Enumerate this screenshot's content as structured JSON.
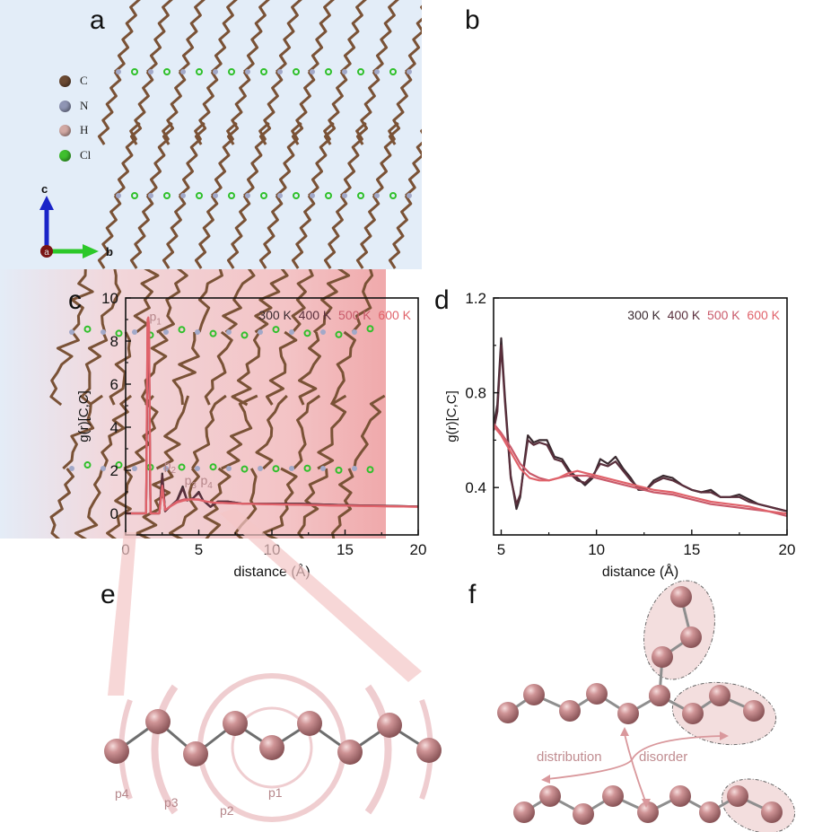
{
  "panels": {
    "a": {
      "letter": "a",
      "legend": [
        {
          "symbol": "C",
          "color": "#6b4a33"
        },
        {
          "symbol": "N",
          "color": "#8f95b4"
        },
        {
          "symbol": "H",
          "color": "#d2a9a4"
        },
        {
          "symbol": "Cl",
          "color": "#3fbf2e"
        }
      ],
      "axes": {
        "c": "c",
        "b": "b",
        "a": "a"
      }
    },
    "b": {
      "letter": "b"
    },
    "c": {
      "letter": "c"
    },
    "d": {
      "letter": "d"
    },
    "e": {
      "letter": "e",
      "shell_labels": [
        "p4",
        "p3",
        "p2",
        "p1"
      ]
    },
    "f": {
      "letter": "f",
      "arrow_labels": [
        "distribution",
        "disorder"
      ]
    }
  },
  "colors": {
    "300K": "#3a2a30",
    "400K": "#5a2f3c",
    "500K": "#c95a6a",
    "600K": "#e0626a",
    "peak_label": "#b5868a",
    "atom": "#c48a8c"
  },
  "chart_data": [
    {
      "id": "c",
      "type": "line",
      "title": "",
      "xlabel": "distance (Å)",
      "ylabel": "g(r)[C,C]",
      "xlim": [
        0,
        20
      ],
      "ylim": [
        -1,
        10
      ],
      "xticks": [
        "0",
        "5",
        "10",
        "15",
        "20"
      ],
      "yticks": [
        "0",
        "2",
        "4",
        "6",
        "8",
        "10"
      ],
      "grid": false,
      "legend": {
        "placement": "top-right",
        "entries": [
          "300 K",
          "400 K",
          "500 K",
          "600 K"
        ]
      },
      "annotations": [
        {
          "text": "p",
          "sub": "1",
          "x": 1.5,
          "y": 9.1
        },
        {
          "text": "p",
          "sub": "2",
          "x": 2.5,
          "y": 2.2
        },
        {
          "text": "p",
          "sub": "3",
          "x": 3.9,
          "y": 1.5
        },
        {
          "text": "p",
          "sub": "4",
          "x": 5.0,
          "y": 1.5
        }
      ],
      "series": [
        {
          "name": "300 K",
          "x": [
            0,
            1.4,
            1.5,
            1.55,
            1.6,
            1.7,
            2.3,
            2.5,
            2.7,
            3.0,
            3.5,
            3.9,
            4.2,
            4.6,
            5.0,
            5.3,
            5.8,
            6.3,
            7,
            8,
            10,
            12,
            14,
            16,
            18,
            20
          ],
          "y": [
            0,
            0,
            7.5,
            8.1,
            7.5,
            0,
            0,
            1.85,
            0.1,
            0.3,
            0.6,
            1.25,
            0.6,
            0.7,
            1.0,
            0.6,
            0.3,
            0.55,
            0.55,
            0.45,
            0.45,
            0.45,
            0.4,
            0.37,
            0.35,
            0.32
          ]
        },
        {
          "name": "400 K",
          "x": [
            0,
            1.4,
            1.5,
            1.55,
            1.6,
            1.7,
            2.3,
            2.5,
            2.7,
            3.0,
            3.5,
            3.9,
            4.2,
            4.6,
            5.0,
            5.3,
            5.8,
            6.3,
            7,
            8,
            10,
            12,
            14,
            16,
            18,
            20
          ],
          "y": [
            0,
            0,
            7.9,
            8.3,
            7.8,
            0,
            0,
            1.75,
            0.1,
            0.3,
            0.55,
            1.15,
            0.6,
            0.7,
            0.95,
            0.6,
            0.32,
            0.55,
            0.55,
            0.45,
            0.45,
            0.44,
            0.4,
            0.37,
            0.35,
            0.32
          ]
        },
        {
          "name": "500 K",
          "x": [
            0,
            1.4,
            1.5,
            1.55,
            1.6,
            1.7,
            2.3,
            2.5,
            2.7,
            3.0,
            3.5,
            4.0,
            4.5,
            5.0,
            5.5,
            6,
            8,
            10,
            12,
            14,
            16,
            18,
            20
          ],
          "y": [
            0,
            0,
            8.8,
            9.0,
            8.6,
            0,
            0,
            1.3,
            0.15,
            0.3,
            0.55,
            0.65,
            0.65,
            0.65,
            0.55,
            0.5,
            0.45,
            0.42,
            0.4,
            0.37,
            0.35,
            0.33,
            0.31
          ]
        },
        {
          "name": "600 K",
          "x": [
            0,
            1.4,
            1.5,
            1.55,
            1.6,
            1.7,
            2.3,
            2.5,
            2.7,
            3.0,
            3.5,
            4.0,
            4.5,
            5.0,
            5.5,
            6,
            8,
            10,
            12,
            14,
            16,
            18,
            20
          ],
          "y": [
            0,
            0,
            9.0,
            9.1,
            8.7,
            0,
            0,
            1.25,
            0.15,
            0.3,
            0.5,
            0.6,
            0.65,
            0.63,
            0.55,
            0.5,
            0.45,
            0.42,
            0.4,
            0.37,
            0.35,
            0.33,
            0.31
          ]
        }
      ]
    },
    {
      "id": "d",
      "type": "line",
      "title": "",
      "xlabel": "distance (Å)",
      "ylabel": "g(r)[C,C]",
      "xlim": [
        4.6,
        20
      ],
      "ylim": [
        0.2,
        1.2
      ],
      "xticks": [
        "5",
        "10",
        "15",
        "20"
      ],
      "yticks": [
        "0.4",
        "0.8",
        "1.2"
      ],
      "grid": false,
      "legend": {
        "placement": "top-right",
        "entries": [
          "300 K",
          "400 K",
          "500 K",
          "600 K"
        ]
      },
      "series": [
        {
          "name": "300 K",
          "x": [
            4.6,
            4.8,
            5.0,
            5.2,
            5.5,
            5.8,
            6.0,
            6.2,
            6.4,
            6.7,
            7.0,
            7.4,
            7.8,
            8.2,
            8.6,
            9.0,
            9.4,
            9.8,
            10.2,
            10.6,
            11.0,
            11.4,
            11.8,
            12.2,
            12.6,
            13.0,
            13.5,
            14.0,
            14.5,
            15.0,
            15.5,
            16.0,
            16.5,
            17.0,
            17.5,
            18.0,
            18.5,
            19.0,
            19.5,
            20.0
          ],
          "y": [
            0.66,
            0.75,
            1.03,
            0.78,
            0.45,
            0.31,
            0.36,
            0.5,
            0.62,
            0.59,
            0.6,
            0.6,
            0.53,
            0.52,
            0.47,
            0.44,
            0.41,
            0.44,
            0.52,
            0.5,
            0.53,
            0.48,
            0.44,
            0.39,
            0.39,
            0.43,
            0.45,
            0.44,
            0.41,
            0.39,
            0.38,
            0.39,
            0.36,
            0.36,
            0.37,
            0.35,
            0.33,
            0.32,
            0.31,
            0.3
          ]
        },
        {
          "name": "400 K",
          "x": [
            4.6,
            4.8,
            5.0,
            5.2,
            5.5,
            5.8,
            6.0,
            6.2,
            6.4,
            6.7,
            7.0,
            7.4,
            7.8,
            8.2,
            8.6,
            9.0,
            9.4,
            9.8,
            10.2,
            10.6,
            11.0,
            11.4,
            11.8,
            12.2,
            12.6,
            13.0,
            13.5,
            14.0,
            14.5,
            15.0,
            15.5,
            16.0,
            16.5,
            17.0,
            17.5,
            18.0,
            18.5,
            19.0,
            19.5,
            20.0
          ],
          "y": [
            0.64,
            0.72,
            1.0,
            0.76,
            0.44,
            0.33,
            0.37,
            0.49,
            0.6,
            0.58,
            0.59,
            0.58,
            0.52,
            0.51,
            0.46,
            0.43,
            0.42,
            0.45,
            0.5,
            0.49,
            0.51,
            0.47,
            0.43,
            0.4,
            0.39,
            0.42,
            0.44,
            0.43,
            0.41,
            0.39,
            0.38,
            0.38,
            0.36,
            0.36,
            0.36,
            0.34,
            0.33,
            0.32,
            0.31,
            0.3
          ]
        },
        {
          "name": "500 K",
          "x": [
            4.6,
            5.0,
            5.5,
            6.0,
            6.5,
            7.0,
            7.5,
            8.0,
            8.5,
            9.0,
            9.5,
            10,
            11,
            12,
            13,
            14,
            15,
            16,
            17,
            18,
            19,
            20
          ],
          "y": [
            0.67,
            0.63,
            0.57,
            0.5,
            0.46,
            0.44,
            0.43,
            0.44,
            0.45,
            0.45,
            0.45,
            0.44,
            0.42,
            0.4,
            0.38,
            0.37,
            0.35,
            0.33,
            0.32,
            0.31,
            0.3,
            0.28
          ]
        },
        {
          "name": "600 K",
          "x": [
            4.6,
            5.0,
            5.5,
            6.0,
            6.5,
            7.0,
            7.5,
            8.0,
            8.5,
            9.0,
            9.5,
            10,
            11,
            12,
            13,
            14,
            15,
            16,
            17,
            18,
            19,
            20
          ],
          "y": [
            0.66,
            0.62,
            0.55,
            0.48,
            0.44,
            0.43,
            0.43,
            0.44,
            0.46,
            0.47,
            0.46,
            0.45,
            0.43,
            0.41,
            0.39,
            0.38,
            0.36,
            0.34,
            0.33,
            0.32,
            0.3,
            0.29
          ]
        }
      ]
    }
  ]
}
